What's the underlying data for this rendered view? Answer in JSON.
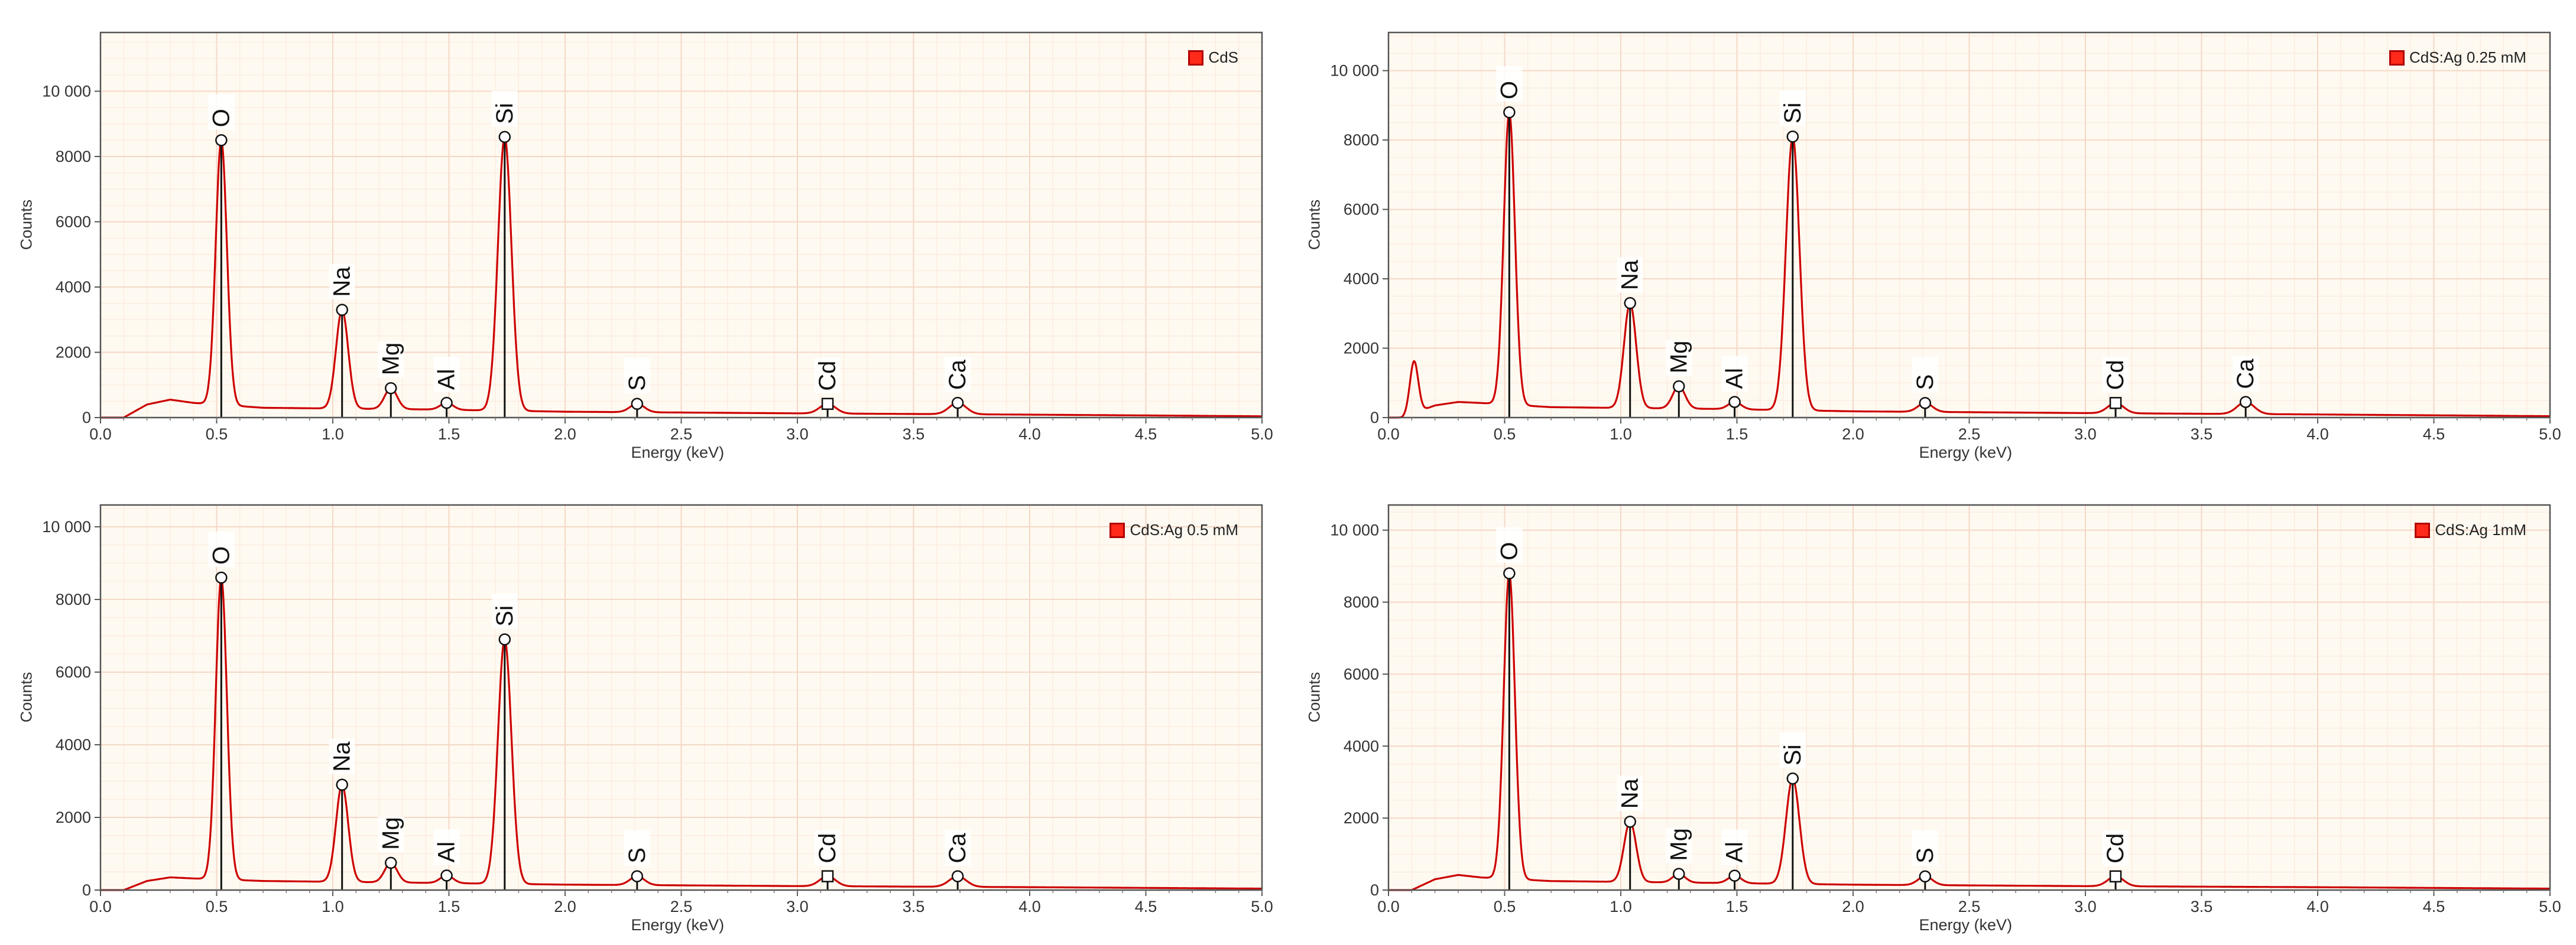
{
  "chart_data": [
    {
      "type": "line",
      "legend": "CdS",
      "legend_position": "top-right",
      "xlabel": "Energy (keV)",
      "ylabel": "Counts",
      "xlim": [
        0,
        5.0
      ],
      "ylim": [
        0,
        11800
      ],
      "xticks": [
        "0.0",
        "0.5",
        "1.0",
        "1.5",
        "2.0",
        "2.5",
        "3.0",
        "3.5",
        "4.0",
        "4.5",
        "5.0"
      ],
      "yticks": [
        0,
        2000,
        4000,
        6000,
        8000,
        10000
      ],
      "ytick_labels": [
        "0",
        "2000",
        "4000",
        "6000",
        "8000",
        "10 000"
      ],
      "grid": true,
      "line_color": "#cc0000",
      "peaks": [
        {
          "label": "O",
          "x": 0.52,
          "y": 8500,
          "marker": "circle"
        },
        {
          "label": "Na",
          "x": 1.04,
          "y": 3300,
          "marker": "circle"
        },
        {
          "label": "Mg",
          "x": 1.25,
          "y": 900,
          "marker": "circle"
        },
        {
          "label": "Al",
          "x": 1.49,
          "y": 450,
          "marker": "circle"
        },
        {
          "label": "Si",
          "x": 1.74,
          "y": 8600,
          "marker": "circle"
        },
        {
          "label": "S",
          "x": 2.31,
          "y": 420,
          "marker": "circle"
        },
        {
          "label": "Cd",
          "x": 3.13,
          "y": 420,
          "marker": "square"
        },
        {
          "label": "Ca",
          "x": 3.69,
          "y": 450,
          "marker": "circle"
        }
      ],
      "background": [
        {
          "x": 0.1,
          "y": 0
        },
        {
          "x": 0.2,
          "y": 400
        },
        {
          "x": 0.3,
          "y": 550
        },
        {
          "x": 0.4,
          "y": 450
        },
        {
          "x": 0.7,
          "y": 300
        },
        {
          "x": 1.4,
          "y": 250
        },
        {
          "x": 2.0,
          "y": 180
        },
        {
          "x": 3.0,
          "y": 130
        },
        {
          "x": 4.0,
          "y": 90
        },
        {
          "x": 5.0,
          "y": 40
        }
      ],
      "extra_bumps": []
    },
    {
      "type": "line",
      "legend": "CdS:Ag 0.25 mM",
      "legend_position": "top-right",
      "xlabel": "Energy (keV)",
      "ylabel": "Counts",
      "xlim": [
        0,
        5.0
      ],
      "ylim": [
        0,
        11100
      ],
      "xticks": [
        "0.0",
        "0.5",
        "1.0",
        "1.5",
        "2.0",
        "2.5",
        "3.0",
        "3.5",
        "4.0",
        "4.5",
        "5.0"
      ],
      "yticks": [
        0,
        2000,
        4000,
        6000,
        8000,
        10000
      ],
      "ytick_labels": [
        "0",
        "2000",
        "4000",
        "6000",
        "8000",
        "10 000"
      ],
      "grid": true,
      "line_color": "#cc0000",
      "peaks": [
        {
          "label": "O",
          "x": 0.52,
          "y": 8800,
          "marker": "circle"
        },
        {
          "label": "Na",
          "x": 1.04,
          "y": 3300,
          "marker": "circle"
        },
        {
          "label": "Mg",
          "x": 1.25,
          "y": 900,
          "marker": "circle"
        },
        {
          "label": "Al",
          "x": 1.49,
          "y": 450,
          "marker": "circle"
        },
        {
          "label": "Si",
          "x": 1.74,
          "y": 8100,
          "marker": "circle"
        },
        {
          "label": "S",
          "x": 2.31,
          "y": 420,
          "marker": "circle"
        },
        {
          "label": "Cd",
          "x": 3.13,
          "y": 420,
          "marker": "square"
        },
        {
          "label": "Ca",
          "x": 3.69,
          "y": 450,
          "marker": "circle"
        }
      ],
      "background": [
        {
          "x": 0.06,
          "y": 0
        },
        {
          "x": 0.2,
          "y": 350
        },
        {
          "x": 0.3,
          "y": 450
        },
        {
          "x": 0.4,
          "y": 420
        },
        {
          "x": 0.7,
          "y": 300
        },
        {
          "x": 1.4,
          "y": 250
        },
        {
          "x": 2.0,
          "y": 180
        },
        {
          "x": 3.0,
          "y": 130
        },
        {
          "x": 4.0,
          "y": 90
        },
        {
          "x": 5.0,
          "y": 40
        }
      ],
      "extra_bumps": [
        {
          "x": 0.11,
          "y": 1500
        }
      ]
    },
    {
      "type": "line",
      "legend": "CdS:Ag 0.5 mM",
      "legend_position": "top-right",
      "xlabel": "Energy (keV)",
      "ylabel": "Counts",
      "xlim": [
        0,
        5.0
      ],
      "ylim": [
        0,
        10600
      ],
      "xticks": [
        "0.0",
        "0.5",
        "1.0",
        "1.5",
        "2.0",
        "2.5",
        "3.0",
        "3.5",
        "4.0",
        "4.5",
        "5.0"
      ],
      "yticks": [
        0,
        2000,
        4000,
        6000,
        8000,
        10000
      ],
      "ytick_labels": [
        "0",
        "2000",
        "4000",
        "6000",
        "8000",
        "10 000"
      ],
      "grid": true,
      "line_color": "#cc0000",
      "peaks": [
        {
          "label": "O",
          "x": 0.52,
          "y": 8600,
          "marker": "circle"
        },
        {
          "label": "Na",
          "x": 1.04,
          "y": 2900,
          "marker": "circle"
        },
        {
          "label": "Mg",
          "x": 1.25,
          "y": 750,
          "marker": "circle"
        },
        {
          "label": "Al",
          "x": 1.49,
          "y": 400,
          "marker": "circle"
        },
        {
          "label": "Si",
          "x": 1.74,
          "y": 6900,
          "marker": "circle"
        },
        {
          "label": "S",
          "x": 2.31,
          "y": 380,
          "marker": "circle"
        },
        {
          "label": "Cd",
          "x": 3.13,
          "y": 380,
          "marker": "square"
        },
        {
          "label": "Ca",
          "x": 3.69,
          "y": 380,
          "marker": "circle"
        }
      ],
      "background": [
        {
          "x": 0.1,
          "y": 0
        },
        {
          "x": 0.2,
          "y": 250
        },
        {
          "x": 0.3,
          "y": 350
        },
        {
          "x": 0.4,
          "y": 320
        },
        {
          "x": 0.7,
          "y": 250
        },
        {
          "x": 1.4,
          "y": 200
        },
        {
          "x": 2.0,
          "y": 150
        },
        {
          "x": 3.0,
          "y": 110
        },
        {
          "x": 4.0,
          "y": 80
        },
        {
          "x": 5.0,
          "y": 40
        }
      ],
      "extra_bumps": []
    },
    {
      "type": "line",
      "legend": "CdS:Ag 1mM",
      "legend_position": "top-right",
      "xlabel": "Energy (keV)",
      "ylabel": "Counts",
      "xlim": [
        0,
        5.0
      ],
      "ylim": [
        0,
        10700
      ],
      "xticks": [
        "0.0",
        "0.5",
        "1.0",
        "1.5",
        "2.0",
        "2.5",
        "3.0",
        "3.5",
        "4.0",
        "4.5",
        "5.0"
      ],
      "yticks": [
        0,
        2000,
        4000,
        6000,
        8000,
        10000
      ],
      "ytick_labels": [
        "0",
        "2000",
        "4000",
        "6000",
        "8000",
        "10 000"
      ],
      "grid": true,
      "line_color": "#cc0000",
      "peaks": [
        {
          "label": "O",
          "x": 0.52,
          "y": 8800,
          "marker": "circle"
        },
        {
          "label": "Na",
          "x": 1.04,
          "y": 1900,
          "marker": "circle"
        },
        {
          "label": "Mg",
          "x": 1.25,
          "y": 450,
          "marker": "circle"
        },
        {
          "label": "Al",
          "x": 1.49,
          "y": 400,
          "marker": "circle"
        },
        {
          "label": "Si",
          "x": 1.74,
          "y": 3100,
          "marker": "circle"
        },
        {
          "label": "S",
          "x": 2.31,
          "y": 380,
          "marker": "circle"
        },
        {
          "label": "Cd",
          "x": 3.13,
          "y": 380,
          "marker": "square"
        }
      ],
      "background": [
        {
          "x": 0.1,
          "y": 0
        },
        {
          "x": 0.2,
          "y": 300
        },
        {
          "x": 0.3,
          "y": 420
        },
        {
          "x": 0.4,
          "y": 350
        },
        {
          "x": 0.7,
          "y": 250
        },
        {
          "x": 1.4,
          "y": 200
        },
        {
          "x": 2.0,
          "y": 150
        },
        {
          "x": 3.0,
          "y": 110
        },
        {
          "x": 4.0,
          "y": 80
        },
        {
          "x": 5.0,
          "y": 40
        }
      ],
      "extra_bumps": []
    }
  ]
}
